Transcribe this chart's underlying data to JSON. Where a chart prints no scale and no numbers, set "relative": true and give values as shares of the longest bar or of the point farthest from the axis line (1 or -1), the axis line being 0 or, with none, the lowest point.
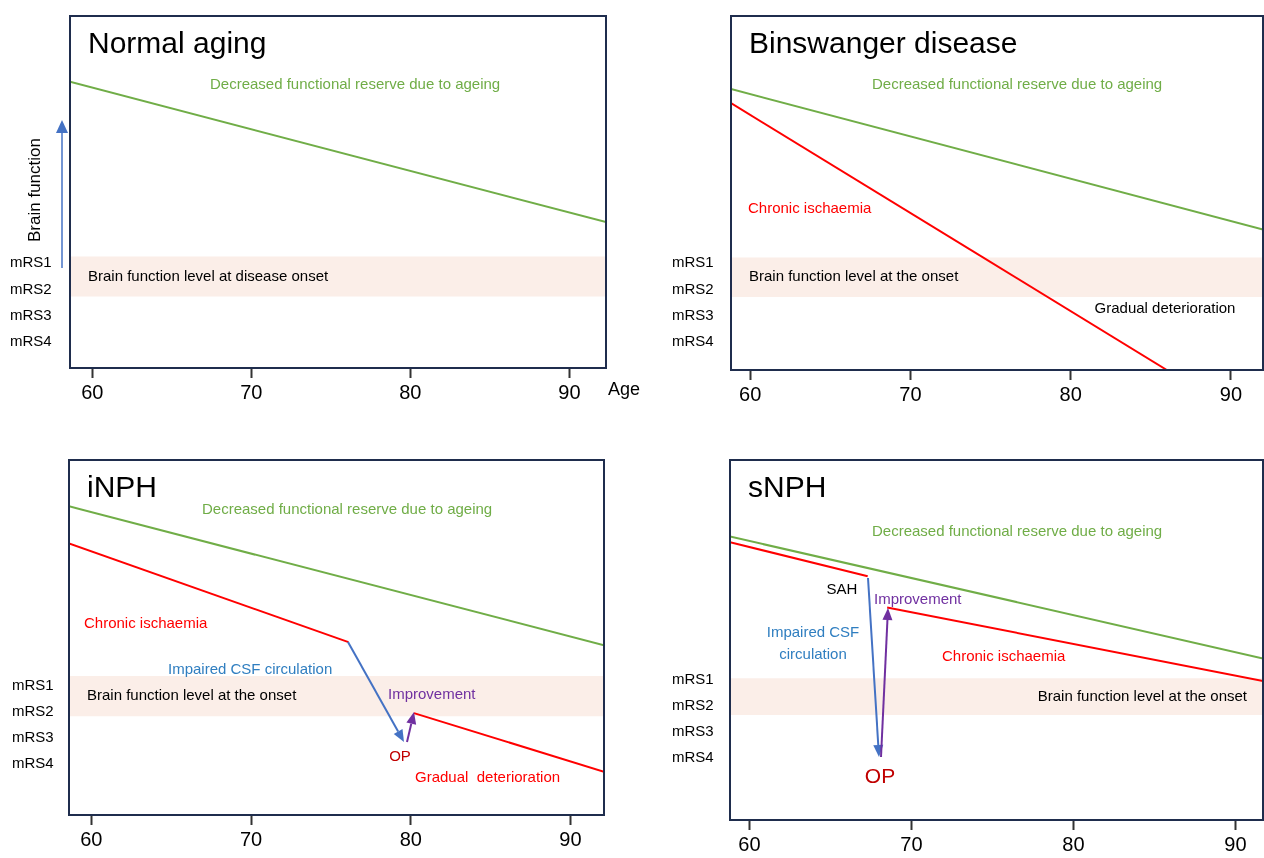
{
  "chart_data": [
    {
      "type": "line",
      "title": "Normal aging",
      "xlabel": "Age",
      "ylabel": "Brain function",
      "xlim": [
        58.6,
        92.3
      ],
      "xticks": [
        60,
        70,
        80,
        90
      ],
      "relative": true,
      "series": [
        {
          "name": "Decreased functional reserve due to ageing",
          "color": "#70ad47",
          "x": [
            58.6,
            92.3
          ],
          "values": [
            1,
            0.51
          ]
        }
      ],
      "bands": [
        {
          "axis": "y",
          "from": 0.25,
          "to": 0.39,
          "label": "Brain function level at disease onset",
          "color": "#fbeee8"
        }
      ],
      "annotations": [
        "mRS1",
        "mRS2",
        "mRS3",
        "mRS4"
      ],
      "legend": false
    },
    {
      "type": "line",
      "title": "Binswanger disease",
      "xlim": [
        58.8,
        92
      ],
      "xticks": [
        60,
        70,
        80,
        90
      ],
      "relative": true,
      "series": [
        {
          "name": "Decreased functional reserve due to ageing",
          "color": "#70ad47",
          "x": [
            58.8,
            92
          ],
          "values": [
            1,
            0.5
          ]
        },
        {
          "name": "Chronic ischaemia",
          "color": "#ff0000",
          "x": [
            58.8,
            86
          ],
          "values": [
            0.95,
            0
          ]
        }
      ],
      "bands": [
        {
          "axis": "y",
          "from": 0.26,
          "to": 0.4,
          "label": "Brain function level at the onset",
          "color": "#fbeee8"
        }
      ],
      "annotations": [
        "mRS1",
        "mRS2",
        "mRS3",
        "mRS4",
        "Gradual deterioration"
      ],
      "legend": false
    },
    {
      "type": "line",
      "title": "iNPH",
      "xlim": [
        58.6,
        92.1
      ],
      "xticks": [
        60,
        70,
        80,
        90
      ],
      "relative": true,
      "series": [
        {
          "name": "Decreased functional reserve due to ageing",
          "color": "#70ad47",
          "x": [
            58.6,
            92.1
          ],
          "values": [
            1,
            0.55
          ]
        },
        {
          "name": "Chronic ischaemia",
          "color": "#ff0000",
          "x": [
            58.6,
            76.1
          ],
          "values": [
            0.88,
            0.56
          ]
        },
        {
          "name": "Gradual  deterioration",
          "color": "#ff0000",
          "x": [
            80.2,
            92.1
          ],
          "values": [
            0.33,
            0.14
          ]
        }
      ],
      "bands": [
        {
          "axis": "y",
          "from": 0.32,
          "to": 0.45,
          "label": "Brain function level at the onset",
          "color": "#fbeee8"
        }
      ],
      "annotations": [
        "mRS1",
        "mRS2",
        "mRS3",
        "mRS4",
        "Impaired CSF circulation",
        "Improvement",
        "OP"
      ],
      "legend": false
    },
    {
      "type": "line",
      "title": "sNPH",
      "xlim": [
        58.8,
        91.7
      ],
      "xticks": [
        60,
        70,
        80,
        90
      ],
      "relative": true,
      "series": [
        {
          "name": "Decreased functional reserve due to ageing",
          "color": "#70ad47",
          "x": [
            58.8,
            91.7
          ],
          "values": [
            1,
            0.57
          ]
        },
        {
          "color": "#ff0000",
          "x": [
            58.8,
            67.3
          ],
          "values": [
            0.98,
            0.86
          ]
        },
        {
          "name": "Chronic ischaemia",
          "color": "#ff0000",
          "x": [
            68.5,
            91.7
          ],
          "values": [
            0.75,
            0.49
          ]
        }
      ],
      "bands": [
        {
          "axis": "y",
          "from": 0.37,
          "to": 0.5,
          "label": "Brain function level at the onset",
          "color": "#fbeee8"
        }
      ],
      "annotations": [
        "mRS1",
        "mRS2",
        "mRS3",
        "mRS4",
        "SAH",
        "Impaired CSF circulation",
        "Improvement",
        "OP"
      ],
      "legend": false
    }
  ]
}
